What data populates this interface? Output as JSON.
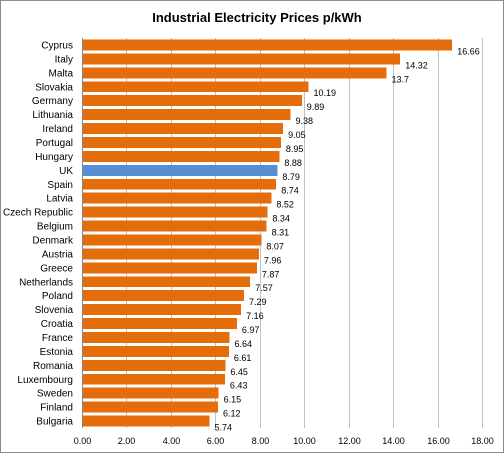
{
  "chart_data": {
    "type": "bar",
    "orientation": "horizontal",
    "title": "Industrial Electricity Prices p/kWh",
    "xlabel": "",
    "ylabel": "",
    "xlim": [
      0,
      18
    ],
    "x_ticks": [
      "0.00",
      "2.00",
      "4.00",
      "6.00",
      "8.00",
      "10.00",
      "12.00",
      "14.00",
      "16.00",
      "18.00"
    ],
    "grid": true,
    "legend": "none",
    "colors": {
      "default_bar": "#e46c0a",
      "highlight_bar": "#558ed5",
      "gridline": "#c0c0c0"
    },
    "highlight_category": "UK",
    "categories": [
      "Cyprus",
      "Italy",
      "Malta",
      "Slovakia",
      "Germany",
      "Lithuania",
      "Ireland",
      "Portugal",
      "Hungary",
      "UK",
      "Spain",
      "Latvia",
      "Czech Republic",
      "Belgium",
      "Denmark",
      "Austria",
      "Greece",
      "Netherlands",
      "Poland",
      "Slovenia",
      "Croatia",
      "France",
      "Estonia",
      "Romania",
      "Luxembourg",
      "Sweden",
      "Finland",
      "Bulgaria"
    ],
    "values": [
      16.66,
      14.32,
      13.7,
      10.19,
      9.89,
      9.38,
      9.05,
      8.95,
      8.88,
      8.79,
      8.74,
      8.52,
      8.34,
      8.31,
      8.07,
      7.96,
      7.87,
      7.57,
      7.29,
      7.16,
      6.97,
      6.64,
      6.61,
      6.45,
      6.43,
      6.15,
      6.12,
      5.74
    ],
    "value_labels": [
      "16.66",
      "14.32",
      "13.7",
      "10.19",
      "9.89",
      "9.38",
      "9.05",
      "8.95",
      "8.88",
      "8.79",
      "8.74",
      "8.52",
      "8.34",
      "8.31",
      "8.07",
      "7.96",
      "7.87",
      "7.57",
      "7.29",
      "7.16",
      "6.97",
      "6.64",
      "6.61",
      "6.45",
      "6.43",
      "6.15",
      "6.12",
      "5.74"
    ]
  }
}
